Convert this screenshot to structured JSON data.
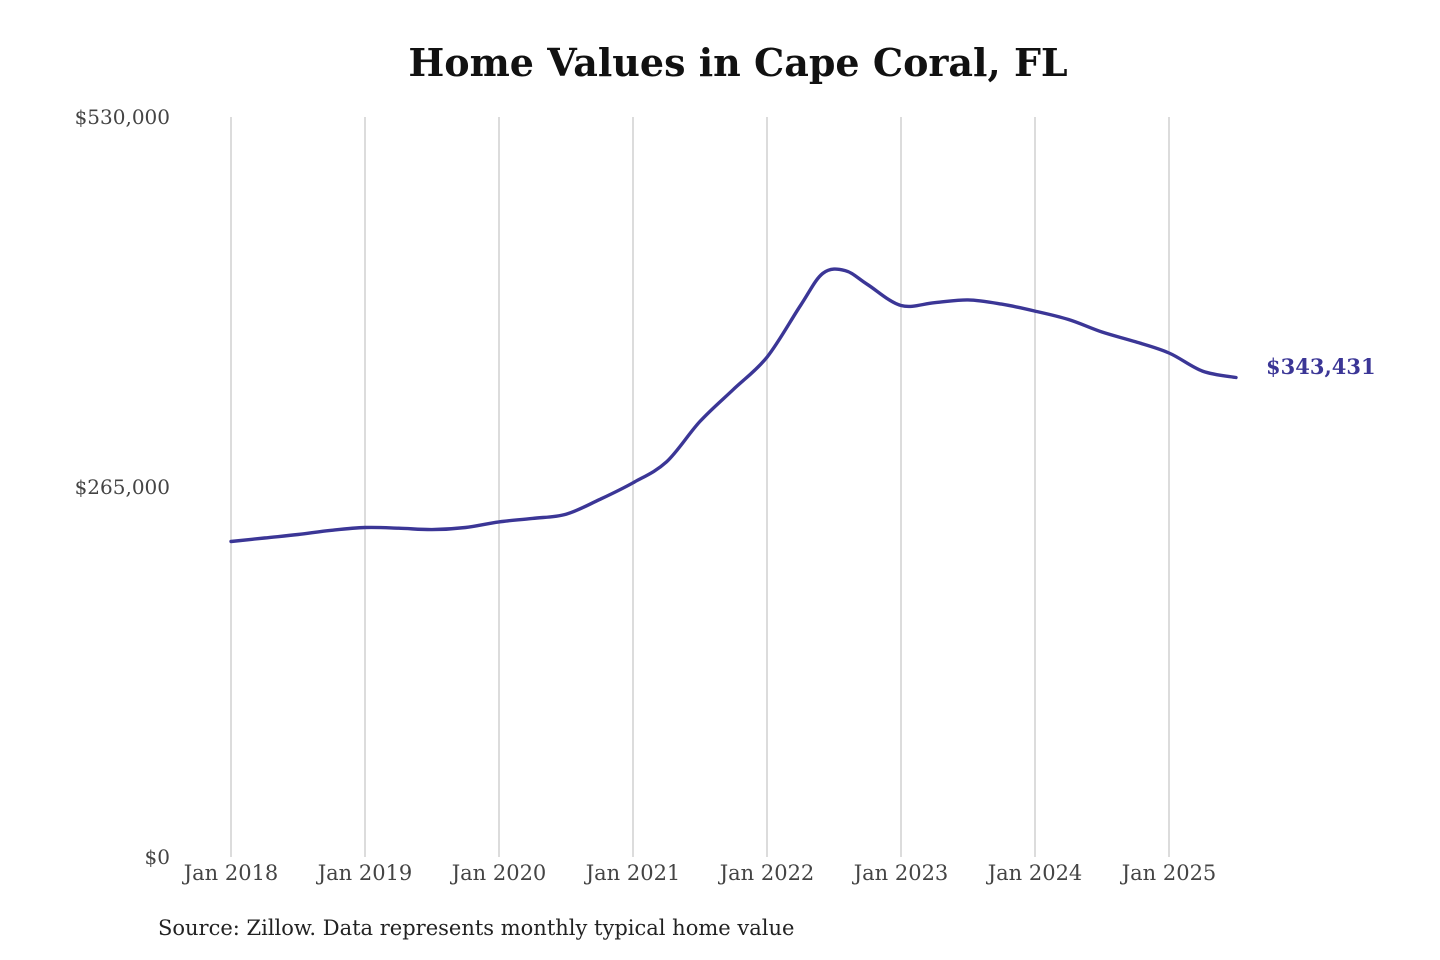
{
  "chart_data": {
    "type": "line",
    "title": "Home Values in Cape Coral, FL",
    "xlabel": "",
    "ylabel": "",
    "source": "Source: Zillow. Data represents monthly typical home value",
    "x_ticks": [
      "Jan 2018",
      "Jan 2019",
      "Jan 2020",
      "Jan 2021",
      "Jan 2022",
      "Jan 2023",
      "Jan 2024",
      "Jan 2025"
    ],
    "y_ticks": [
      {
        "value": 530000,
        "label": "$530,000"
      },
      {
        "value": 265000,
        "label": "$265,000"
      },
      {
        "value": 0,
        "label": "$0"
      }
    ],
    "xlim": [
      "2018-01",
      "2025-07"
    ],
    "ylim": [
      0,
      530000
    ],
    "grid": "vertical",
    "line_color": "#3b3696",
    "end_label": "$343,431",
    "series": [
      {
        "x": [
          "2018-01",
          "2018-04",
          "2018-07",
          "2018-10",
          "2019-01",
          "2019-04",
          "2019-07",
          "2019-10",
          "2020-01",
          "2020-04",
          "2020-07",
          "2020-10",
          "2021-01",
          "2021-04",
          "2021-07",
          "2021-10",
          "2022-01",
          "2022-04",
          "2022-06",
          "2022-08",
          "2022-10",
          "2023-01",
          "2023-04",
          "2023-07",
          "2023-10",
          "2024-01",
          "2024-04",
          "2024-07",
          "2024-10",
          "2025-01",
          "2025-04",
          "2025-07"
        ],
        "y": [
          226000,
          228500,
          231000,
          234000,
          236000,
          235500,
          234500,
          236000,
          240000,
          242500,
          245500,
          256000,
          268000,
          283000,
          312000,
          335000,
          358000,
          395000,
          418000,
          420000,
          410000,
          395000,
          397000,
          399000,
          396000,
          391000,
          385000,
          376000,
          369000,
          361000,
          348000,
          343431
        ]
      }
    ]
  }
}
